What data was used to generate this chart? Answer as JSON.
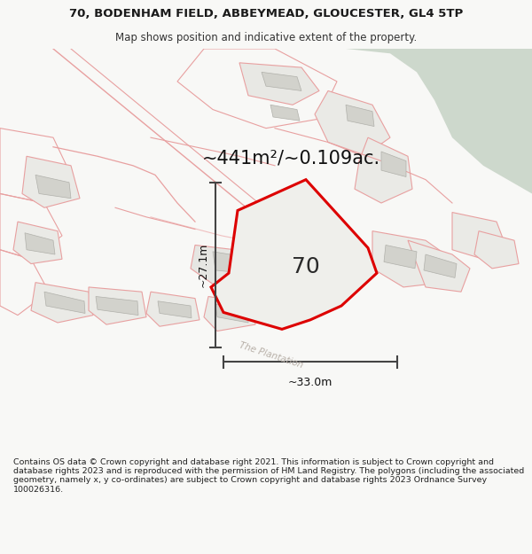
{
  "title_line1": "70, BODENHAM FIELD, ABBEYMEAD, GLOUCESTER, GL4 5TP",
  "title_line2": "Map shows position and indicative extent of the property.",
  "area_text": "~441m²/~0.109ac.",
  "dim_width": "~33.0m",
  "dim_height": "~27.1m",
  "label_70": "70",
  "street_label": "The Plantation",
  "footer_text": "Contains OS data © Crown copyright and database right 2021. This information is subject to Crown copyright and database rights 2023 and is reproduced with the permission of HM Land Registry. The polygons (including the associated geometry, namely x, y co-ordinates) are subject to Crown copyright and database rights 2023 Ordnance Survey 100026316.",
  "bg_color": "#f8f8f6",
  "map_bg": "#f5f5f2",
  "red_color": "#dd0000",
  "pink_color": "#e8a0a0",
  "pink_light": "#f0c0c0",
  "green_patch_color": "#cdd8cc",
  "gray_building_color": "#d2d2cc",
  "dark_line_color": "#444444",
  "title_fontsize": 9.5,
  "subtitle_fontsize": 8.5,
  "area_fontsize": 15,
  "label_fontsize": 18,
  "dim_fontsize": 9,
  "footer_fontsize": 6.8
}
